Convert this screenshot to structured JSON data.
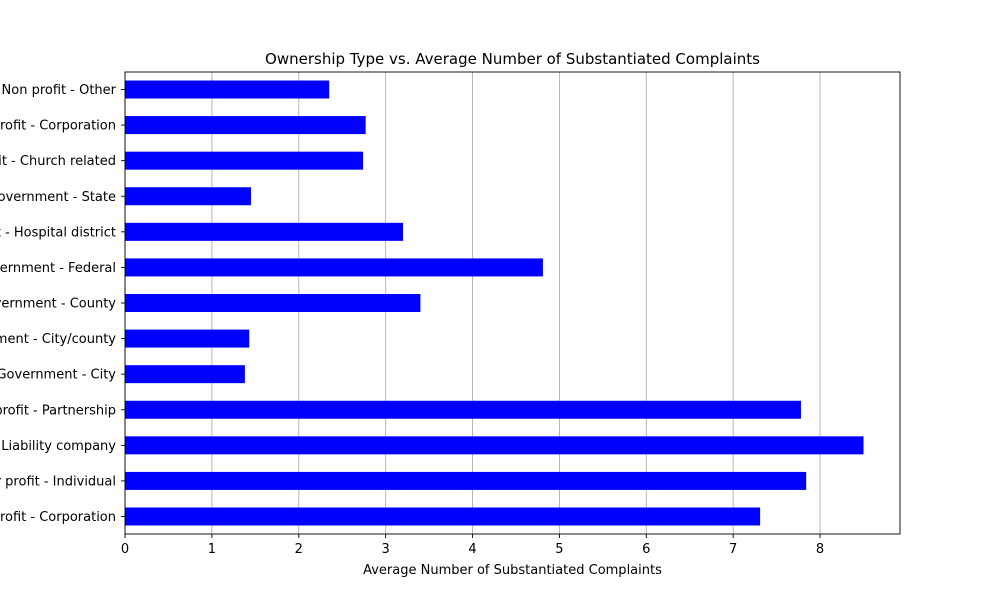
{
  "chart_data": {
    "type": "bar",
    "orientation": "horizontal",
    "title": "Ownership Type vs. Average Number of Substantiated Complaints",
    "xlabel": "Average Number of Substantiated Complaints",
    "ylabel": "",
    "xlim": [
      0,
      8.92
    ],
    "x_ticks": [
      0,
      1,
      2,
      3,
      4,
      5,
      6,
      7,
      8
    ],
    "grid": "vertical",
    "legend": "none",
    "bar_color": "#0000ff",
    "categories": [
      "Non profit - Other",
      "Non profit - Corporation",
      "Non profit - Church related",
      "Government - State",
      "Government - Hospital district",
      "Government - Federal",
      "Government - County",
      "Government - City/county",
      "Government - City",
      "For profit - Partnership",
      "For profit - Limited Liability company",
      "For profit - Individual",
      "For profit - Corporation"
    ],
    "values": [
      2.35,
      2.77,
      2.74,
      1.45,
      3.2,
      4.81,
      3.4,
      1.43,
      1.38,
      7.78,
      8.5,
      7.84,
      7.31
    ]
  }
}
